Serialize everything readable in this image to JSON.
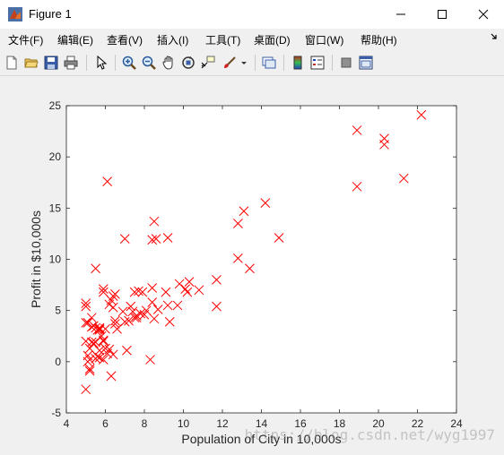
{
  "window": {
    "title": "Figure 1"
  },
  "menu": [
    "文件(F)",
    "编辑(E)",
    "查看(V)",
    "插入(I)",
    "工具(T)",
    "桌面(D)",
    "窗口(W)",
    "帮助(H)"
  ],
  "toolbar_icons": [
    "new-figure-icon",
    "open-file-icon",
    "save-icon",
    "print-icon",
    "pointer-icon",
    "zoom-in-icon",
    "zoom-out-icon",
    "pan-hand-icon",
    "rotate-3d-icon",
    "data-cursor-icon",
    "brush-icon",
    "brush-dropdown-icon",
    "link-plot-icon",
    "colorbar-icon",
    "legend-icon",
    "hide-plot-tools-icon",
    "show-plot-tools-icon"
  ],
  "colors": {
    "marker": "#ff0000",
    "axes": "#262626",
    "background": "#f0f0f0",
    "plot_bg": "#ffffff"
  },
  "watermark": "https://blog.csdn.net/wyg1997",
  "chart_data": {
    "type": "scatter",
    "xlabel": "Population of City in 10,000s",
    "ylabel": "Profit in $10,000s",
    "xlim": [
      4,
      24
    ],
    "ylim": [
      -5,
      25
    ],
    "xticks": [
      4,
      6,
      8,
      10,
      12,
      14,
      16,
      18,
      20,
      22,
      24
    ],
    "yticks": [
      -5,
      0,
      5,
      10,
      15,
      20,
      25
    ],
    "marker": "x",
    "grid": false,
    "points": [
      [
        6.1,
        17.6
      ],
      [
        5.5,
        9.1
      ],
      [
        8.5,
        13.7
      ],
      [
        7.0,
        12.0
      ],
      [
        5.9,
        6.8
      ],
      [
        8.4,
        11.9
      ],
      [
        7.5,
        4.3
      ],
      [
        8.6,
        12.0
      ],
      [
        6.5,
        6.6
      ],
      [
        5.1,
        3.8
      ],
      [
        5.7,
        3.3
      ],
      [
        14.2,
        15.5
      ],
      [
        5.7,
        3.2
      ],
      [
        8.4,
        7.2
      ],
      [
        6.4,
        0.7
      ],
      [
        5.4,
        3.5
      ],
      [
        6.4,
        5.3
      ],
      [
        5.1,
        0.6
      ],
      [
        5.0,
        3.8
      ],
      [
        6.5,
        3.7
      ],
      [
        6.1,
        0.8
      ],
      [
        5.0,
        2.0
      ],
      [
        5.7,
        0.4
      ],
      [
        6.5,
        4.0
      ],
      [
        5.7,
        3.1
      ],
      [
        5.3,
        4.3
      ],
      [
        5.9,
        2.0
      ],
      [
        5.3,
        1.9
      ],
      [
        5.5,
        3.3
      ],
      [
        5.2,
        0.2
      ],
      [
        5.5,
        0.3
      ],
      [
        5.5,
        1.9
      ],
      [
        6.3,
        6.0
      ],
      [
        5.9,
        2.1
      ],
      [
        8.5,
        4.2
      ],
      [
        5.0,
        5.7
      ],
      [
        5.3,
        3.4
      ],
      [
        6.0,
        1.3
      ],
      [
        7.5,
        6.8
      ],
      [
        5.7,
        1.1
      ],
      [
        5.0,
        5.4
      ],
      [
        5.6,
        3.1
      ],
      [
        6.2,
        1.2
      ],
      [
        6.3,
        -1.4
      ],
      [
        6.4,
        6.4
      ],
      [
        5.2,
        1.3
      ],
      [
        5.0,
        -2.7
      ],
      [
        5.2,
        -0.7
      ],
      [
        5.2,
        -0.9
      ],
      [
        5.1,
        0.0
      ],
      [
        5.4,
        1.8
      ],
      [
        5.9,
        0.2
      ],
      [
        5.6,
        0.5
      ],
      [
        6.0,
        3.2
      ],
      [
        5.9,
        7.1
      ],
      [
        7.0,
        3.9
      ],
      [
        7.3,
        5.4
      ],
      [
        7.6,
        4.5
      ],
      [
        7.1,
        1.1
      ],
      [
        7.7,
        6.9
      ],
      [
        7.8,
        4.7
      ],
      [
        8.1,
        5.0
      ],
      [
        8.3,
        0.2
      ],
      [
        8.4,
        5.8
      ],
      [
        7.9,
        6.8
      ],
      [
        7.4,
        4.9
      ],
      [
        8.7,
        5.1
      ],
      [
        9.1,
        6.8
      ],
      [
        9.3,
        3.9
      ],
      [
        9.7,
        5.5
      ],
      [
        9.8,
        7.6
      ],
      [
        10.1,
        7.1
      ],
      [
        10.3,
        7.8
      ],
      [
        10.8,
        7.0
      ],
      [
        11.7,
        5.4
      ],
      [
        11.7,
        8.0
      ],
      [
        9.2,
        12.1
      ],
      [
        12.8,
        13.5
      ],
      [
        13.1,
        14.7
      ],
      [
        12.8,
        10.1
      ],
      [
        13.4,
        9.1
      ],
      [
        14.9,
        12.1
      ],
      [
        18.9,
        22.6
      ],
      [
        18.9,
        17.1
      ],
      [
        20.3,
        21.8
      ],
      [
        20.3,
        21.2
      ],
      [
        21.3,
        17.9
      ],
      [
        22.2,
        24.1
      ],
      [
        6.2,
        5.6
      ],
      [
        7.6,
        4.3
      ],
      [
        8.0,
        4.6
      ],
      [
        9.2,
        5.5
      ],
      [
        10.2,
        6.8
      ],
      [
        6.9,
        4.9
      ],
      [
        5.8,
        2.5
      ],
      [
        6.6,
        3.2
      ],
      [
        7.2,
        4.0
      ]
    ]
  }
}
